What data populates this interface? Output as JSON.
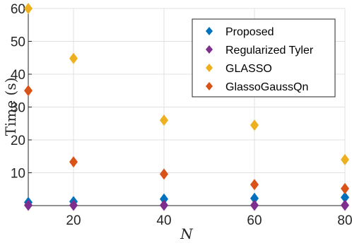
{
  "chart_data": {
    "type": "scatter",
    "title": "",
    "xlabel": "N",
    "ylabel": "Time (s)",
    "xlim": [
      10,
      80
    ],
    "ylim": [
      0,
      60
    ],
    "grid": true,
    "legend_position": "top-right",
    "x_ticks": [
      "20",
      "40",
      "60",
      "80"
    ],
    "y_ticks": [
      "10",
      "20",
      "30",
      "40",
      "50",
      "60"
    ],
    "x": [
      10,
      20,
      40,
      60,
      80
    ],
    "series": [
      {
        "name": "Proposed",
        "color": "#0072BD",
        "values": [
          1.0,
          1.2,
          2.0,
          2.2,
          2.5
        ]
      },
      {
        "name": "Regularized Tyler",
        "color": "#7E2F8E",
        "values": [
          0.1,
          0.1,
          0.1,
          0.1,
          0.1
        ]
      },
      {
        "name": "GLASSO",
        "color": "#EDB120",
        "values": [
          60.0,
          44.8,
          26.0,
          24.5,
          14.0
        ]
      },
      {
        "name": "GlassoGaussQn",
        "color": "#D95319",
        "values": [
          35.0,
          13.3,
          9.6,
          6.4,
          5.2
        ]
      }
    ]
  }
}
